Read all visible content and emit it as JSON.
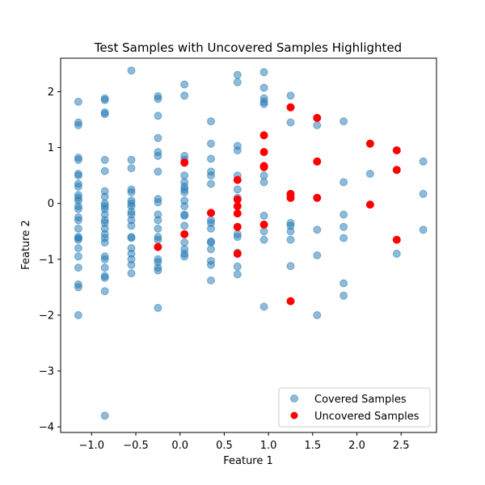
{
  "chart_data": {
    "type": "scatter",
    "title": "Test Samples with Uncovered Samples Highlighted",
    "xlabel": "Feature 1",
    "ylabel": "Feature 2",
    "xlim": [
      -1.35,
      2.9
    ],
    "ylim": [
      -4.1,
      2.6
    ],
    "xticks": [
      -1.0,
      -0.5,
      0.0,
      0.5,
      1.0,
      1.5,
      2.0,
      2.5
    ],
    "xtick_labels": [
      "−1.0",
      "−0.5",
      "0.0",
      "0.5",
      "1.0",
      "1.5",
      "2.0",
      "2.5"
    ],
    "yticks": [
      -4,
      -3,
      -2,
      -1,
      0,
      1,
      2
    ],
    "ytick_labels": [
      "−4",
      "−3",
      "−2",
      "−1",
      "0",
      "1",
      "2"
    ],
    "grid": false,
    "legend_position": "bottom-right",
    "series": [
      {
        "name": "Covered Samples",
        "color": "#1f77b4",
        "alpha": 0.5,
        "points": [
          [
            -1.15,
            1.82
          ],
          [
            -1.15,
            1.45
          ],
          [
            -1.15,
            1.4
          ],
          [
            -1.15,
            0.82
          ],
          [
            -1.15,
            0.78
          ],
          [
            -1.15,
            0.53
          ],
          [
            -1.15,
            0.5
          ],
          [
            -1.15,
            0.35
          ],
          [
            -1.15,
            0.3
          ],
          [
            -1.15,
            0.15
          ],
          [
            -1.15,
            0.1
          ],
          [
            -1.15,
            0.05
          ],
          [
            -1.15,
            -0.05
          ],
          [
            -1.15,
            -0.1
          ],
          [
            -1.15,
            -0.25
          ],
          [
            -1.15,
            -0.3
          ],
          [
            -1.15,
            -0.45
          ],
          [
            -1.15,
            -0.6
          ],
          [
            -1.15,
            -0.62
          ],
          [
            -1.15,
            -0.65
          ],
          [
            -1.15,
            -0.8
          ],
          [
            -1.15,
            -0.95
          ],
          [
            -1.15,
            -1.15
          ],
          [
            -1.15,
            -1.45
          ],
          [
            -1.15,
            -1.5
          ],
          [
            -1.15,
            -2.0
          ],
          [
            -0.85,
            1.88
          ],
          [
            -0.85,
            1.85
          ],
          [
            -0.85,
            1.63
          ],
          [
            -0.85,
            1.6
          ],
          [
            -0.85,
            0.78
          ],
          [
            -0.85,
            0.58
          ],
          [
            -0.85,
            0.22
          ],
          [
            -0.85,
            0.12
          ],
          [
            -0.85,
            0.0
          ],
          [
            -0.85,
            -0.05
          ],
          [
            -0.85,
            -0.1
          ],
          [
            -0.85,
            -0.2
          ],
          [
            -0.85,
            -0.3
          ],
          [
            -0.85,
            -0.35
          ],
          [
            -0.85,
            -0.45
          ],
          [
            -0.85,
            -0.55
          ],
          [
            -0.85,
            -0.62
          ],
          [
            -0.85,
            -0.7
          ],
          [
            -0.85,
            -0.95
          ],
          [
            -0.85,
            -1.0
          ],
          [
            -0.85,
            -1.15
          ],
          [
            -0.85,
            -1.3
          ],
          [
            -0.85,
            -1.33
          ],
          [
            -0.85,
            -1.57
          ],
          [
            -0.85,
            -3.8
          ],
          [
            -0.55,
            2.38
          ],
          [
            -0.55,
            0.78
          ],
          [
            -0.55,
            0.63
          ],
          [
            -0.55,
            0.25
          ],
          [
            -0.55,
            0.2
          ],
          [
            -0.55,
            0.05
          ],
          [
            -0.55,
            0.0
          ],
          [
            -0.55,
            -0.05
          ],
          [
            -0.55,
            -0.15
          ],
          [
            -0.55,
            -0.2
          ],
          [
            -0.55,
            -0.3
          ],
          [
            -0.55,
            -0.4
          ],
          [
            -0.55,
            -0.6
          ],
          [
            -0.55,
            -0.62
          ],
          [
            -0.55,
            -0.8
          ],
          [
            -0.55,
            -0.9
          ],
          [
            -0.55,
            -1.0
          ],
          [
            -0.55,
            -1.1
          ],
          [
            -0.55,
            -1.25
          ],
          [
            -0.25,
            1.92
          ],
          [
            -0.25,
            1.87
          ],
          [
            -0.25,
            1.57
          ],
          [
            -0.25,
            1.17
          ],
          [
            -0.25,
            0.92
          ],
          [
            -0.25,
            0.85
          ],
          [
            -0.25,
            0.57
          ],
          [
            -0.25,
            0.08
          ],
          [
            -0.25,
            0.02
          ],
          [
            -0.25,
            -0.2
          ],
          [
            -0.25,
            -0.3
          ],
          [
            -0.25,
            -0.45
          ],
          [
            -0.25,
            -0.6
          ],
          [
            -0.25,
            -0.65
          ],
          [
            -0.25,
            -1.0
          ],
          [
            -0.25,
            -1.05
          ],
          [
            -0.25,
            -1.15
          ],
          [
            -0.25,
            -1.2
          ],
          [
            -0.25,
            -1.87
          ],
          [
            0.05,
            2.13
          ],
          [
            0.05,
            1.93
          ],
          [
            0.05,
            0.85
          ],
          [
            0.05,
            0.78
          ],
          [
            0.05,
            0.5
          ],
          [
            0.05,
            0.38
          ],
          [
            0.05,
            0.3
          ],
          [
            0.05,
            0.25
          ],
          [
            0.05,
            0.2
          ],
          [
            0.05,
            0.05
          ],
          [
            0.05,
            -0.05
          ],
          [
            0.05,
            -0.2
          ],
          [
            0.05,
            -0.22
          ],
          [
            0.05,
            -0.4
          ],
          [
            0.05,
            -0.7
          ],
          [
            0.05,
            -0.82
          ],
          [
            0.05,
            -0.9
          ],
          [
            0.05,
            -0.95
          ],
          [
            0.35,
            1.47
          ],
          [
            0.35,
            1.07
          ],
          [
            0.35,
            0.8
          ],
          [
            0.35,
            0.57
          ],
          [
            0.35,
            0.5
          ],
          [
            0.35,
            0.35
          ],
          [
            0.35,
            -0.3
          ],
          [
            0.35,
            -0.35
          ],
          [
            0.35,
            -0.45
          ],
          [
            0.35,
            -0.68
          ],
          [
            0.35,
            -0.7
          ],
          [
            0.35,
            -0.82
          ],
          [
            0.35,
            -1.03
          ],
          [
            0.35,
            -1.1
          ],
          [
            0.35,
            -1.38
          ],
          [
            0.65,
            2.3
          ],
          [
            0.65,
            2.17
          ],
          [
            0.65,
            1.03
          ],
          [
            0.65,
            0.95
          ],
          [
            0.65,
            0.5
          ],
          [
            0.65,
            0.25
          ],
          [
            0.65,
            0.1
          ],
          [
            0.65,
            -0.55
          ],
          [
            0.65,
            -0.6
          ],
          [
            0.65,
            -0.88
          ],
          [
            0.65,
            -1.13
          ],
          [
            0.65,
            -1.27
          ],
          [
            0.95,
            2.35
          ],
          [
            0.95,
            2.07
          ],
          [
            0.95,
            1.88
          ],
          [
            0.95,
            1.82
          ],
          [
            0.95,
            1.78
          ],
          [
            0.95,
            0.5
          ],
          [
            0.95,
            0.38
          ],
          [
            0.95,
            -0.22
          ],
          [
            0.95,
            -0.5
          ],
          [
            0.95,
            -0.65
          ],
          [
            0.95,
            -1.85
          ],
          [
            1.25,
            1.93
          ],
          [
            1.25,
            1.45
          ],
          [
            1.25,
            -0.35
          ],
          [
            1.25,
            -0.4
          ],
          [
            1.25,
            -0.5
          ],
          [
            1.25,
            -0.65
          ],
          [
            1.25,
            -1.12
          ],
          [
            1.55,
            1.4
          ],
          [
            1.55,
            -0.47
          ],
          [
            1.55,
            -0.93
          ],
          [
            1.55,
            -2.0
          ],
          [
            1.85,
            1.47
          ],
          [
            1.85,
            0.38
          ],
          [
            1.85,
            -0.2
          ],
          [
            1.85,
            -0.42
          ],
          [
            1.85,
            -0.62
          ],
          [
            1.85,
            -1.43
          ],
          [
            1.85,
            -1.65
          ],
          [
            2.15,
            0.53
          ],
          [
            2.45,
            -0.9
          ],
          [
            2.75,
            0.75
          ],
          [
            2.75,
            0.17
          ],
          [
            2.75,
            -0.47
          ]
        ]
      },
      {
        "name": "Uncovered Samples",
        "color": "#ff0000",
        "alpha": 1.0,
        "points": [
          [
            -0.25,
            -0.78
          ],
          [
            0.05,
            0.73
          ],
          [
            0.05,
            -0.55
          ],
          [
            0.35,
            -0.17
          ],
          [
            0.65,
            0.42
          ],
          [
            0.65,
            0.07
          ],
          [
            0.65,
            -0.05
          ],
          [
            0.65,
            -0.18
          ],
          [
            0.65,
            -0.42
          ],
          [
            0.65,
            -0.9
          ],
          [
            0.95,
            1.22
          ],
          [
            0.95,
            0.92
          ],
          [
            0.95,
            0.67
          ],
          [
            0.95,
            0.65
          ],
          [
            0.95,
            -0.38
          ],
          [
            1.25,
            1.72
          ],
          [
            1.25,
            0.17
          ],
          [
            1.25,
            0.1
          ],
          [
            1.25,
            -1.75
          ],
          [
            1.55,
            1.53
          ],
          [
            1.55,
            0.75
          ],
          [
            1.55,
            0.1
          ],
          [
            2.15,
            1.07
          ],
          [
            2.15,
            -0.02
          ],
          [
            2.45,
            0.95
          ],
          [
            2.45,
            0.6
          ],
          [
            2.45,
            -0.65
          ]
        ]
      }
    ]
  }
}
